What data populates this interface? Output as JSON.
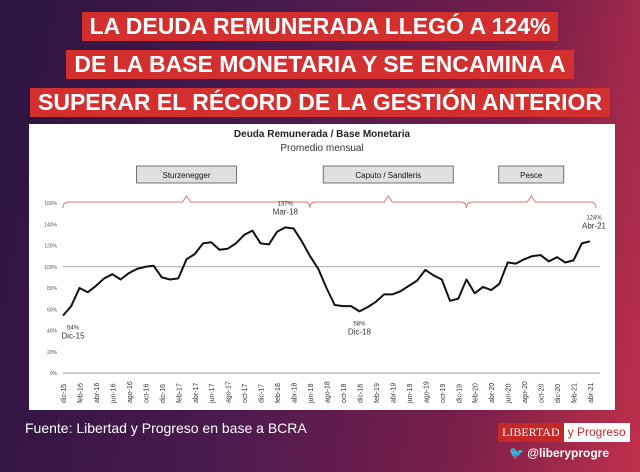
{
  "headline": [
    "LA DEUDA REMUNERADA LLEGÓ A 124%",
    "DE LA BASE MONETARIA Y SE ENCAMINA A",
    "SUPERAR EL RÉCORD DE LA GESTIÓN ANTERIOR"
  ],
  "footer": {
    "source": "Fuente: Libertad y Progreso en  base a BCRA",
    "logo_left": "LIBERTAD",
    "logo_right": "y Progreso",
    "twitter": "@liberyprogre"
  },
  "chart_data": {
    "type": "line",
    "title": "Deuda Remunerada / Base Monetaria",
    "subtitle": "Promedio mensual",
    "ylim": [
      0,
      160
    ],
    "yticks": [
      "0%",
      "20%",
      "40%",
      "60%",
      "80%",
      "100%",
      "120%",
      "140%",
      "160%"
    ],
    "reference_line": 100,
    "xtick_labels": [
      "dic-15",
      "feb-16",
      "abr-16",
      "jun-16",
      "ago-16",
      "oct-16",
      "dic-16",
      "feb-17",
      "abr-17",
      "jun-17",
      "ago-17",
      "oct-17",
      "dic-17",
      "feb-18",
      "abr-18",
      "jun-18",
      "ago-18",
      "oct-18",
      "dic-18",
      "feb-19",
      "abr-19",
      "jun-19",
      "ago-19",
      "oct-19",
      "dic-19",
      "feb-20",
      "abr-20",
      "jun-20",
      "ago-20",
      "oct-20",
      "dic-20",
      "feb-21",
      "abr-21"
    ],
    "series": [
      {
        "name": "Deuda Remunerada / Base Monetaria",
        "values": [
          54,
          63,
          80,
          76,
          82,
          89,
          93,
          88,
          94,
          98,
          100,
          101,
          90,
          88,
          89,
          107,
          112,
          122,
          123,
          116,
          117,
          122,
          130,
          134,
          122,
          121,
          133,
          137,
          136,
          124,
          110,
          98,
          80,
          64,
          63,
          63,
          58,
          62,
          67,
          74,
          74,
          77,
          82,
          87,
          97,
          92,
          88,
          68,
          70,
          88,
          75,
          81,
          78,
          84,
          104,
          103,
          107,
          110,
          111,
          105,
          109,
          104,
          106,
          122,
          124
        ]
      }
    ],
    "periods": [
      {
        "label": "Sturzenegger",
        "start": 0,
        "end": 30
      },
      {
        "label": "Caputo / Sandleris",
        "start": 30,
        "end": 49
      },
      {
        "label": "Pesce",
        "start": 49,
        "end": 65
      }
    ],
    "annotations": [
      {
        "index": 0,
        "value": "54%",
        "label": "Dic-15"
      },
      {
        "index": 27,
        "value": "137%",
        "label": "Mar-18"
      },
      {
        "index": 36,
        "value": "58%",
        "label": "Dic-18"
      },
      {
        "index": 64,
        "value": "124%",
        "label": "Abr-21"
      }
    ]
  }
}
